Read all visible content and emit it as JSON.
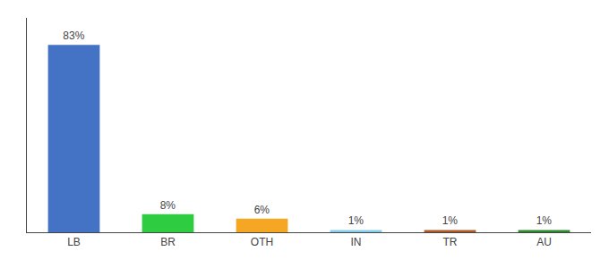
{
  "chart_data": {
    "type": "bar",
    "categories": [
      "LB",
      "BR",
      "OTH",
      "IN",
      "TR",
      "AU"
    ],
    "values": [
      83,
      8,
      6,
      1,
      1,
      1
    ],
    "value_labels": [
      "83%",
      "8%",
      "6%",
      "1%",
      "1%",
      "1%"
    ],
    "colors": [
      "#4472c4",
      "#2ecc40",
      "#f5a623",
      "#87ceeb",
      "#b05a2a",
      "#2d8a2d"
    ],
    "ylim": [
      0,
      95
    ],
    "data_labels": true,
    "tick_labels": "x",
    "grid": false
  }
}
